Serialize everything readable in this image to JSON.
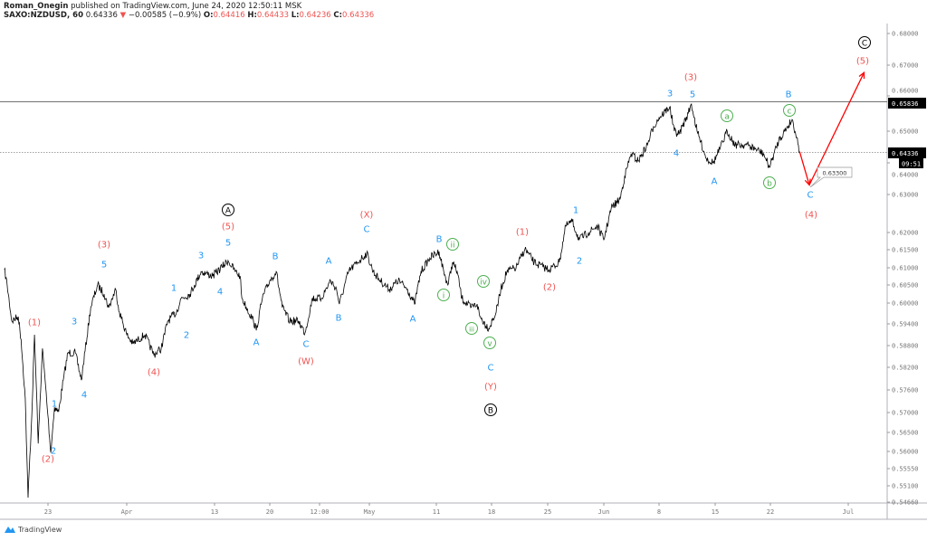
{
  "header": {
    "author": "Roman_Onegin",
    "published": "published on TradingView.com, June 24, 2020 12:50:11 MSK",
    "symbol": "SAXO:NZDUSD, 60",
    "last": "0.64336",
    "change": "−0.00585 (−0.9%)",
    "o_label": "O:",
    "o": "0.64416",
    "h_label": "H:",
    "h": "0.64433",
    "l_label": "L:",
    "l": "0.64236",
    "c_label": "C:",
    "c": "0.64336"
  },
  "footer": {
    "brand": "TradingView",
    "brand_color": "#2196f3"
  },
  "chart_data": {
    "type": "line",
    "xlabel": "",
    "ylabel": "",
    "x_ticks": [
      "23",
      "Apr",
      "13",
      "20",
      "12:00",
      "May",
      "11",
      "18",
      "25",
      "Jun",
      "8",
      "15",
      "22",
      "Jul"
    ],
    "y_ticks": [
      "0.68000",
      "0.67000",
      "0.66000",
      "0.65000",
      "0.64000",
      "0.63000",
      "0.62000",
      "0.61500",
      "0.61000",
      "0.60500",
      "0.60000",
      "0.59400",
      "0.58800",
      "0.58200",
      "0.57600",
      "0.57000",
      "0.56500",
      "0.56000",
      "0.55550",
      "0.55100",
      "0.54660"
    ],
    "price_line": {
      "value": "0.64336",
      "style": "dotted"
    },
    "resistance_line": {
      "value": "0.65836",
      "style": "solid"
    },
    "countdown": "09:51",
    "target_label": "0.63300",
    "colors": {
      "line": "#000000",
      "wave_red": "#ef5350",
      "wave_blue": "#2196f3",
      "wave_green": "#4caf50",
      "wave_black": "#000000",
      "projection": "#ff0000"
    },
    "series": [
      [
        "2020-03-17 02:00",
        0.6095
      ],
      [
        "2020-03-17 08:00",
        0.605
      ],
      [
        "2020-03-17 18:00",
        0.5948
      ],
      [
        "2020-03-18 08:00",
        0.5961
      ],
      [
        "2020-03-18 14:00",
        0.5897
      ],
      [
        "2020-03-18 23:00",
        0.5738
      ],
      [
        "2020-03-19 05:00",
        0.5478
      ],
      [
        "2020-03-19 13:00",
        0.5691
      ],
      [
        "2020-03-19 19:00",
        0.591
      ],
      [
        "2020-03-20 03:00",
        0.5621
      ],
      [
        "2020-03-20 12:00",
        0.5872
      ],
      [
        "2020-03-23 00:00",
        0.5691
      ],
      [
        "2020-03-23 06:00",
        0.5597
      ],
      [
        "2020-03-23 14:00",
        0.5714
      ],
      [
        "2020-03-23 23:00",
        0.5702
      ],
      [
        "2020-03-24 09:00",
        0.5786
      ],
      [
        "2020-03-24 19:00",
        0.586
      ],
      [
        "2020-03-25 11:00",
        0.586
      ],
      [
        "2020-03-26 00:00",
        0.5786
      ],
      [
        "2020-03-26 20:00",
        0.5987
      ],
      [
        "2020-03-27 11:00",
        0.605
      ],
      [
        "2020-03-30 01:00",
        0.6025
      ],
      [
        "2020-03-30 11:00",
        0.5987
      ],
      [
        "2020-03-31 02:00",
        0.6038
      ],
      [
        "2020-03-31 10:00",
        0.5974
      ],
      [
        "2020-04-01 02:00",
        0.591
      ],
      [
        "2020-04-01 15:00",
        0.5885
      ],
      [
        "2020-04-02 17:00",
        0.591
      ],
      [
        "2020-04-03 12:00",
        0.5855
      ],
      [
        "2020-04-06 04:00",
        0.5872
      ],
      [
        "2020-04-06 18:00",
        0.5948
      ],
      [
        "2020-04-07 13:00",
        0.5974
      ],
      [
        "2020-04-07 23:00",
        0.6013
      ],
      [
        "2020-04-08 18:00",
        0.6025
      ],
      [
        "2020-04-09 04:00",
        0.605
      ],
      [
        "2020-04-09 18:00",
        0.6089
      ],
      [
        "2020-04-10 19:00",
        0.6076
      ],
      [
        "2020-04-13 15:00",
        0.6102
      ],
      [
        "2020-04-14 04:00",
        0.612
      ],
      [
        "2020-04-14 20:00",
        0.6089
      ],
      [
        "2020-04-15 06:00",
        0.6076
      ],
      [
        "2020-04-15 10:00",
        0.6013
      ],
      [
        "2020-04-16 11:00",
        0.5948
      ],
      [
        "2020-04-16 17:00",
        0.5922
      ],
      [
        "2020-04-17 06:00",
        0.6013
      ],
      [
        "2020-04-17 22:00",
        0.6063
      ],
      [
        "2020-04-20 12:00",
        0.6089
      ],
      [
        "2020-04-21 01:00",
        0.5987
      ],
      [
        "2020-04-21 17:00",
        0.5948
      ],
      [
        "2020-04-22 12:00",
        0.5948
      ],
      [
        "2020-04-23 02:00",
        0.5915
      ],
      [
        "2020-04-23 18:00",
        0.6013
      ],
      [
        "2020-04-24 13:00",
        0.6013
      ],
      [
        "2020-04-27 09:00",
        0.6063
      ],
      [
        "2020-04-27 22:00",
        0.6038
      ],
      [
        "2020-04-28 04:00",
        0.5997
      ],
      [
        "2020-04-29 00:00",
        0.6089
      ],
      [
        "2020-04-29 19:00",
        0.6115
      ],
      [
        "2020-04-30 15:00",
        0.614
      ],
      [
        "2020-05-01 05:00",
        0.6089
      ],
      [
        "2020-05-01 20:00",
        0.6063
      ],
      [
        "2020-05-04 16:00",
        0.6038
      ],
      [
        "2020-05-05 11:00",
        0.6063
      ],
      [
        "2020-05-06 07:00",
        0.6038
      ],
      [
        "2020-05-06 22:00",
        0.5997
      ],
      [
        "2020-05-07 12:00",
        0.6089
      ],
      [
        "2020-05-08 07:00",
        0.6127
      ],
      [
        "2020-05-11 03:00",
        0.6145
      ],
      [
        "2020-05-11 13:00",
        0.6089
      ],
      [
        "2020-05-11 22:00",
        0.605
      ],
      [
        "2020-05-12 08:00",
        0.6115
      ],
      [
        "2020-05-12 18:00",
        0.6089
      ],
      [
        "2020-05-13 04:00",
        0.6013
      ],
      [
        "2020-05-13 23:00",
        0.5987
      ],
      [
        "2020-05-14 13:00",
        0.5997
      ],
      [
        "2020-05-14 19:00",
        0.5961
      ],
      [
        "2020-05-15 14:00",
        0.5927
      ],
      [
        "2020-05-18 06:00",
        0.5974
      ],
      [
        "2020-05-18 16:00",
        0.6038
      ],
      [
        "2020-05-19 05:00",
        0.6089
      ],
      [
        "2020-05-20 01:00",
        0.61
      ],
      [
        "2020-05-20 20:00",
        0.6152
      ],
      [
        "2020-05-21 16:00",
        0.6115
      ],
      [
        "2020-05-22 11:00",
        0.6102
      ],
      [
        "2020-05-25 01:00",
        0.6095
      ],
      [
        "2020-05-25 22:00",
        0.6115
      ],
      [
        "2020-05-26 12:00",
        0.6217
      ],
      [
        "2020-05-27 02:00",
        0.6229
      ],
      [
        "2020-05-27 17:00",
        0.6179
      ],
      [
        "2020-05-28 13:00",
        0.62
      ],
      [
        "2020-05-29 08:00",
        0.6217
      ],
      [
        "2020-05-29 22:00",
        0.6179
      ],
      [
        "2020-06-01 14:00",
        0.6264
      ],
      [
        "2020-06-02 09:00",
        0.6288
      ],
      [
        "2020-06-02 19:00",
        0.6357
      ],
      [
        "2020-06-03 09:00",
        0.6429
      ],
      [
        "2020-06-04 00:00",
        0.6406
      ],
      [
        "2020-06-04 20:00",
        0.6457
      ],
      [
        "2020-06-05 09:00",
        0.6513
      ],
      [
        "2020-06-05 21:00",
        0.6538
      ],
      [
        "2020-06-08 20:00",
        0.6569
      ],
      [
        "2020-06-09 06:00",
        0.65
      ],
      [
        "2020-06-09 16:00",
        0.649
      ],
      [
        "2020-06-10 12:00",
        0.6551
      ],
      [
        "2020-06-10 19:00",
        0.6577
      ],
      [
        "2020-06-11 07:00",
        0.65
      ],
      [
        "2020-06-12 03:00",
        0.6414
      ],
      [
        "2020-06-12 18:00",
        0.64
      ],
      [
        "2020-06-15 08:00",
        0.6443
      ],
      [
        "2020-06-16 00:00",
        0.65
      ],
      [
        "2020-06-16 17:00",
        0.6457
      ],
      [
        "2020-06-17 18:00",
        0.6457
      ],
      [
        "2020-06-18 14:00",
        0.6443
      ],
      [
        "2020-06-19 06:00",
        0.6429
      ],
      [
        "2020-06-19 19:00",
        0.6386
      ],
      [
        "2020-06-22 15:00",
        0.6471
      ],
      [
        "2020-06-23 10:00",
        0.6513
      ],
      [
        "2020-06-23 20:00",
        0.6533
      ],
      [
        "2020-06-24 06:00",
        0.648
      ],
      [
        "2020-06-24 12:00",
        0.64336
      ]
    ],
    "projection": [
      [
        "2020-06-24 12:00",
        0.6436
      ],
      [
        "2020-06-25 09:00",
        0.633
      ],
      [
        "2020-07-02 07:00",
        0.6676
      ]
    ],
    "annotations": [
      {
        "text": "(1)",
        "color": "red"
      },
      {
        "text": "(2)",
        "color": "red"
      },
      {
        "text": "1",
        "color": "blue"
      },
      {
        "text": "2",
        "color": "blue"
      },
      {
        "text": "3",
        "color": "blue"
      },
      {
        "text": "4",
        "color": "blue"
      },
      {
        "text": "5",
        "color": "blue"
      },
      {
        "text": "(3)",
        "color": "red"
      },
      {
        "text": "(4)",
        "color": "red"
      },
      {
        "text": "1",
        "color": "blue"
      },
      {
        "text": "2",
        "color": "blue"
      },
      {
        "text": "3",
        "color": "blue"
      },
      {
        "text": "4",
        "color": "blue"
      },
      {
        "text": "5",
        "color": "blue"
      },
      {
        "text": "(5)",
        "color": "red"
      },
      {
        "text": "A",
        "color": "black",
        "circled": true
      },
      {
        "text": "A",
        "color": "blue"
      },
      {
        "text": "B",
        "color": "blue"
      },
      {
        "text": "C",
        "color": "blue"
      },
      {
        "text": "(W)",
        "color": "red"
      },
      {
        "text": "A",
        "color": "blue"
      },
      {
        "text": "B",
        "color": "blue"
      },
      {
        "text": "C",
        "color": "blue"
      },
      {
        "text": "(X)",
        "color": "red"
      },
      {
        "text": "A",
        "color": "blue"
      },
      {
        "text": "B",
        "color": "blue"
      },
      {
        "text": "ii",
        "color": "green",
        "circled": true
      },
      {
        "text": "i",
        "color": "green",
        "circled": true
      },
      {
        "text": "iv",
        "color": "green",
        "circled": true
      },
      {
        "text": "iii",
        "color": "green",
        "circled": true
      },
      {
        "text": "v",
        "color": "green",
        "circled": true
      },
      {
        "text": "C",
        "color": "blue"
      },
      {
        "text": "(Y)",
        "color": "red"
      },
      {
        "text": "B",
        "color": "black",
        "circled": true
      },
      {
        "text": "(1)",
        "color": "red"
      },
      {
        "text": "(2)",
        "color": "red"
      },
      {
        "text": "1",
        "color": "blue"
      },
      {
        "text": "2",
        "color": "blue"
      },
      {
        "text": "3",
        "color": "blue"
      },
      {
        "text": "5",
        "color": "blue"
      },
      {
        "text": "(3)",
        "color": "red"
      },
      {
        "text": "4",
        "color": "blue"
      },
      {
        "text": "a",
        "color": "green",
        "circled": true
      },
      {
        "text": "A",
        "color": "blue"
      },
      {
        "text": "b",
        "color": "green",
        "circled": true
      },
      {
        "text": "B",
        "color": "blue"
      },
      {
        "text": "c",
        "color": "green",
        "circled": true
      },
      {
        "text": "C",
        "color": "blue"
      },
      {
        "text": "(4)",
        "color": "red"
      },
      {
        "text": "(5)",
        "color": "red"
      },
      {
        "text": "C",
        "color": "black",
        "circled": true
      }
    ]
  }
}
